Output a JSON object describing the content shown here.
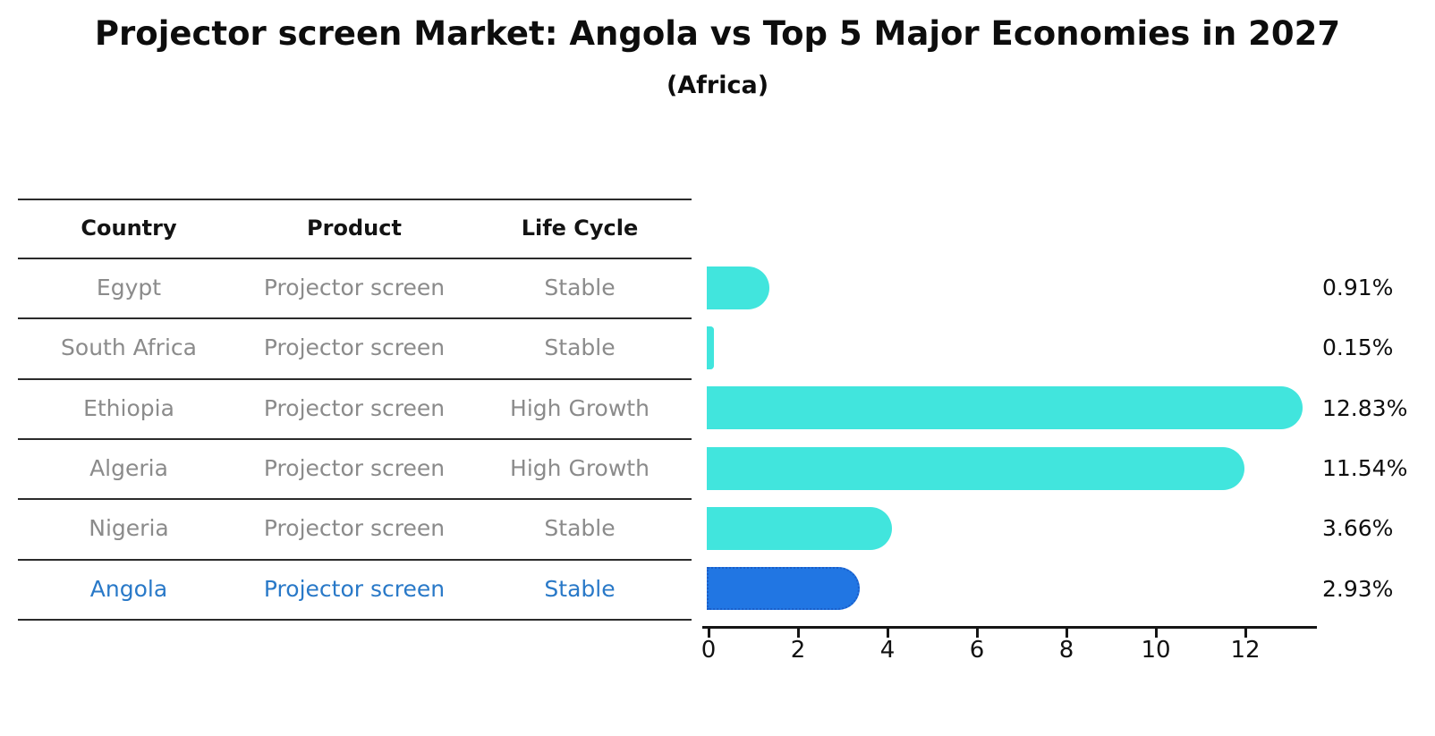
{
  "title": "Projector screen Market: Angola vs Top 5 Major Economies in 2027",
  "subtitle": "(Africa)",
  "table": {
    "headers": [
      "Country",
      "Product",
      "Life Cycle"
    ],
    "rows": [
      {
        "country": "Egypt",
        "product": "Projector screen",
        "life_cycle": "Stable",
        "highlight": false
      },
      {
        "country": "South Africa",
        "product": "Projector screen",
        "life_cycle": "Stable",
        "highlight": false
      },
      {
        "country": "Ethiopia",
        "product": "Projector screen",
        "life_cycle": "High Growth",
        "highlight": false
      },
      {
        "country": "Algeria",
        "product": "Projector screen",
        "life_cycle": "High Growth",
        "highlight": false
      },
      {
        "country": "Nigeria",
        "product": "Projector screen",
        "life_cycle": "Stable",
        "highlight": false
      },
      {
        "country": "Angola",
        "product": "Projector screen",
        "life_cycle": "Stable",
        "highlight": true
      }
    ]
  },
  "chart_data": {
    "type": "bar",
    "orientation": "horizontal",
    "title": "Projector screen Market: Angola vs Top 5 Major Economies in 2027 (Africa)",
    "categories": [
      "Egypt",
      "South Africa",
      "Ethiopia",
      "Algeria",
      "Nigeria",
      "Angola"
    ],
    "values": [
      0.91,
      0.15,
      12.83,
      11.54,
      3.66,
      2.93
    ],
    "labels": [
      "0.91%",
      "0.15%",
      "12.83%",
      "11.54%",
      "3.66%",
      "2.93%"
    ],
    "x_ticks": [
      0,
      2,
      4,
      6,
      8,
      10,
      12
    ],
    "xlim": [
      0,
      13.6
    ],
    "grid": false,
    "legend": "none",
    "bar_color": "#41e5dd",
    "highlight_index": 5,
    "highlight_color": "#2176e3",
    "highlight_border_color": "#1a5ec9",
    "highlight_text_color": "#2979c8"
  },
  "colors": {
    "background": "#ffffff",
    "table_line": "#2b2b2b",
    "row_text": "#8b8b8b",
    "header_text": "#141414",
    "axis": "#151515"
  }
}
